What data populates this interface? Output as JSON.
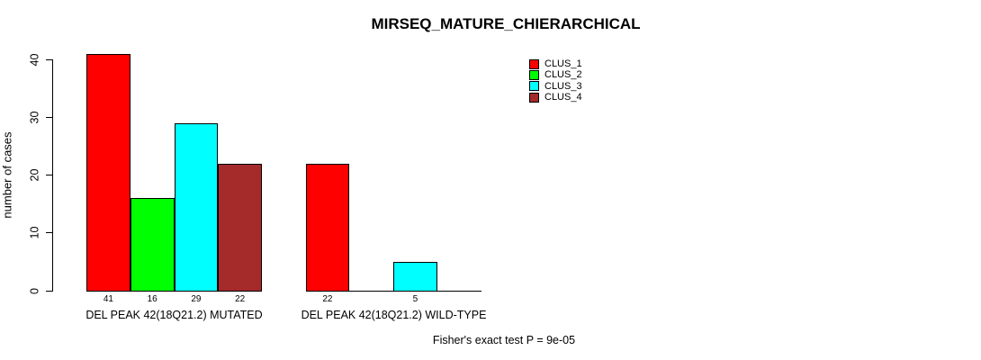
{
  "chart_data": {
    "type": "bar",
    "title": "MIRSEQ_MATURE_CHIERARCHICAL",
    "ylabel": "number of cases",
    "xlabel": "",
    "ylim": [
      0,
      40
    ],
    "yticks": [
      0,
      10,
      20,
      30,
      40
    ],
    "grid": false,
    "legend_position": "top-right",
    "categories": [
      "DEL PEAK 42(18Q21.2) MUTATED",
      "DEL PEAK 42(18Q21.2) WILD-TYPE"
    ],
    "series": [
      {
        "name": "CLUS_1",
        "color": "#FF0000",
        "values": [
          41,
          22
        ]
      },
      {
        "name": "CLUS_2",
        "color": "#00FF00",
        "values": [
          16,
          0
        ]
      },
      {
        "name": "CLUS_3",
        "color": "#00FFFF",
        "values": [
          29,
          5
        ]
      },
      {
        "name": "CLUS_4",
        "color": "#A52A2A",
        "values": [
          22,
          0
        ]
      }
    ],
    "groups": [
      {
        "label": "DEL PEAK 42(18Q21.2) MUTATED",
        "values": [
          41,
          16,
          29,
          22
        ]
      },
      {
        "label": "DEL PEAK 42(18Q21.2) WILD-TYPE",
        "values": [
          22,
          0,
          5,
          0
        ]
      }
    ],
    "bar_value_labels": [
      [
        "41",
        "16",
        "29",
        "22"
      ],
      [
        "22",
        "5"
      ]
    ],
    "annotation": "Fisher's exact test P = 9e-05"
  }
}
